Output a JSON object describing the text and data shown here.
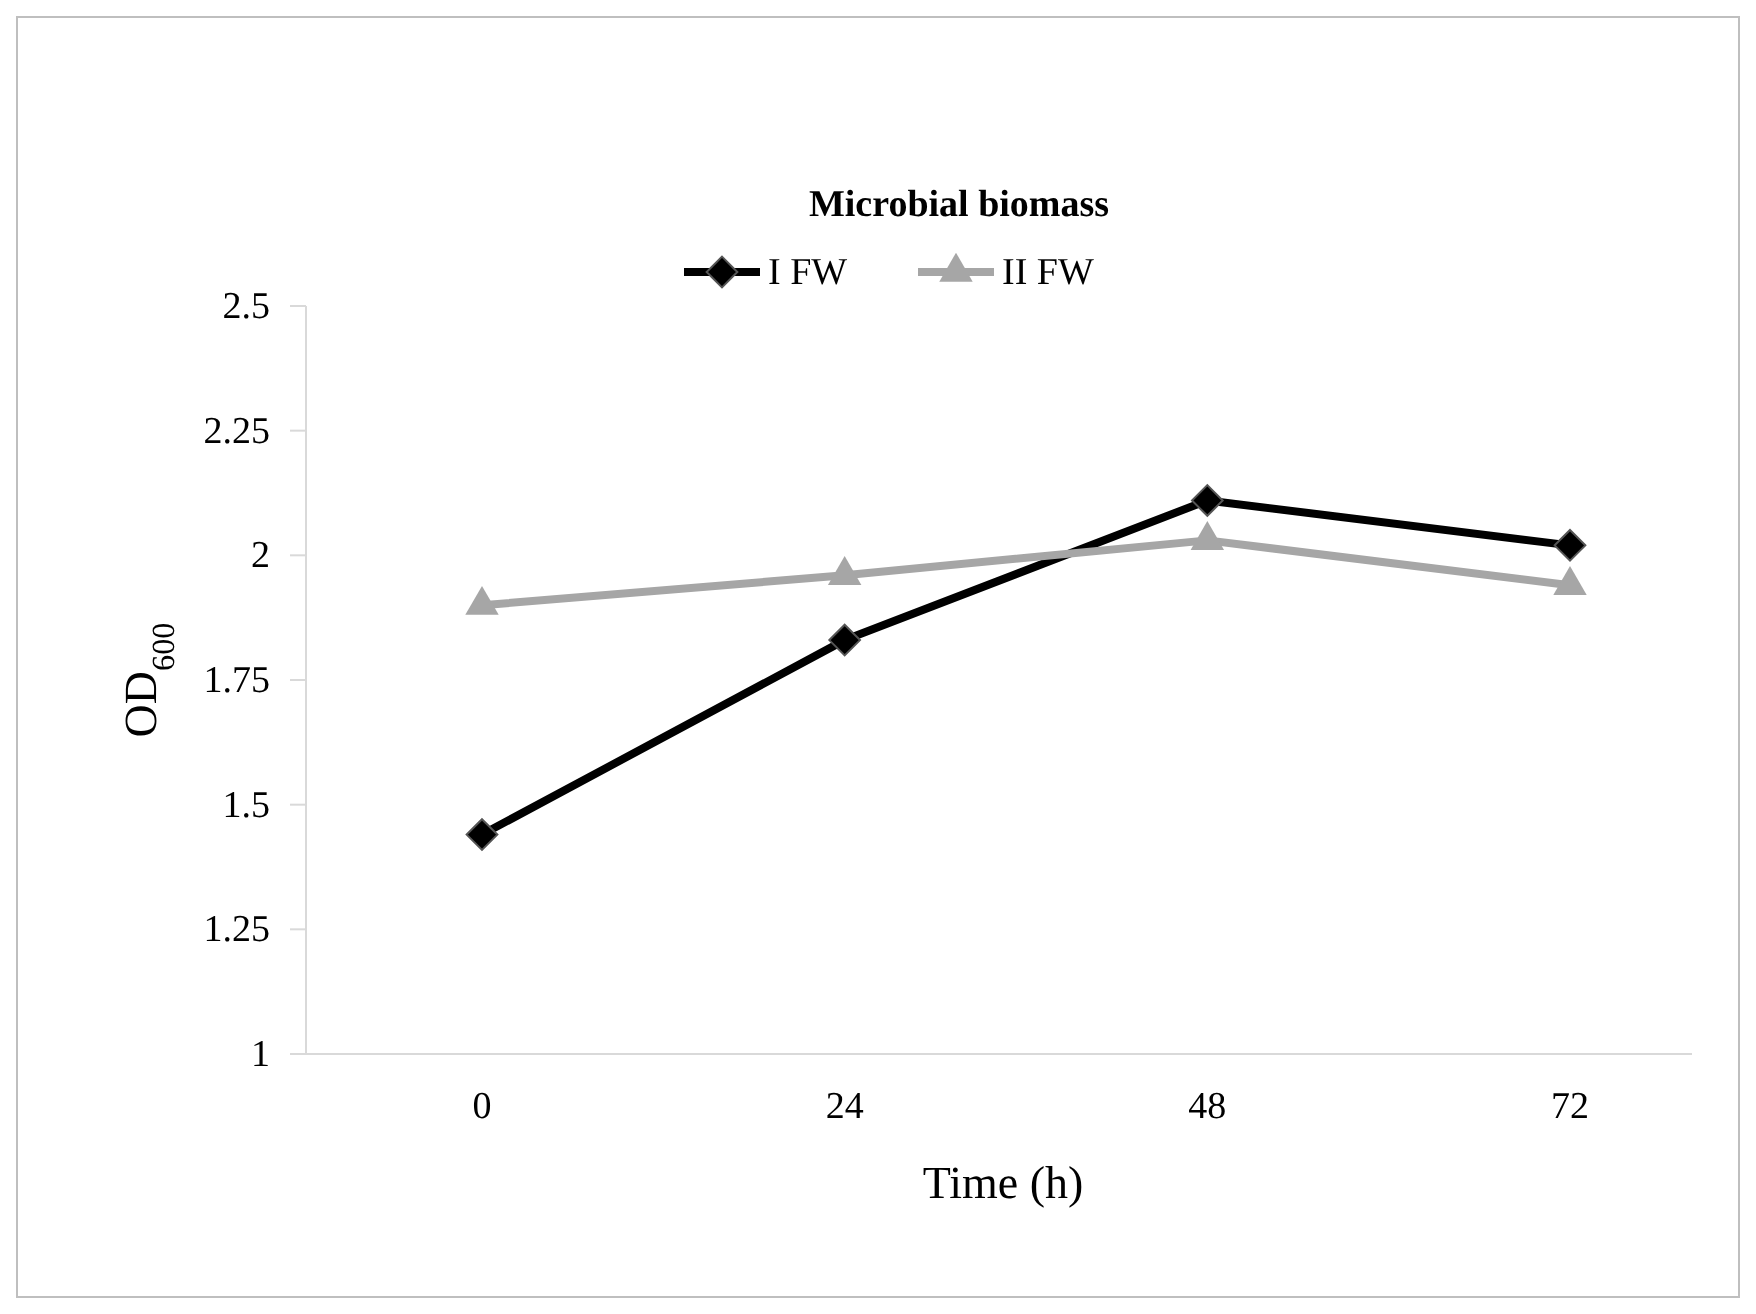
{
  "chart_data": {
    "type": "line",
    "title": "Microbial biomass",
    "xlabel": "Time (h)",
    "ylabel": "OD$_{600}$",
    "categories": [
      "0",
      "24",
      "48",
      "72"
    ],
    "ylim": [
      1,
      2.5
    ],
    "yticks": [
      1,
      1.25,
      1.5,
      1.75,
      2,
      2.25,
      2.5
    ],
    "grid": false,
    "legend": "top",
    "series": [
      {
        "name": "I FW",
        "color": "#000000",
        "marker": "diamond",
        "values": [
          1.44,
          1.83,
          2.11,
          2.02
        ]
      },
      {
        "name": "II FW",
        "color": "#a6a6a6",
        "marker": "triangle",
        "values": [
          1.9,
          1.96,
          2.03,
          1.94
        ]
      }
    ]
  }
}
